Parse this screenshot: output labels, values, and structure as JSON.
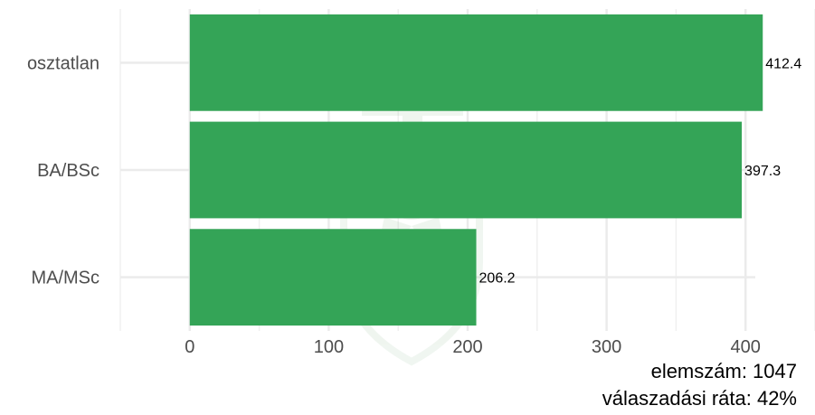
{
  "chart_data": {
    "type": "bar",
    "orientation": "horizontal",
    "categories": [
      "osztatlan",
      "BA/BSc",
      "MA/MSc"
    ],
    "values": [
      412.4,
      397.3,
      206.2
    ],
    "value_labels": [
      "412.4",
      "397.3",
      "206.2"
    ],
    "x_ticks": [
      0,
      100,
      200,
      300,
      400
    ],
    "xlim": [
      -50,
      450
    ],
    "grid": true,
    "title": "",
    "xlabel": "",
    "ylabel": "",
    "bar_color": "#34a457"
  },
  "caption": {
    "line1": "elemszám: 1047",
    "line2": "válaszadási ráta: 42%"
  },
  "watermark": {
    "icon": "university-crest-icon"
  }
}
